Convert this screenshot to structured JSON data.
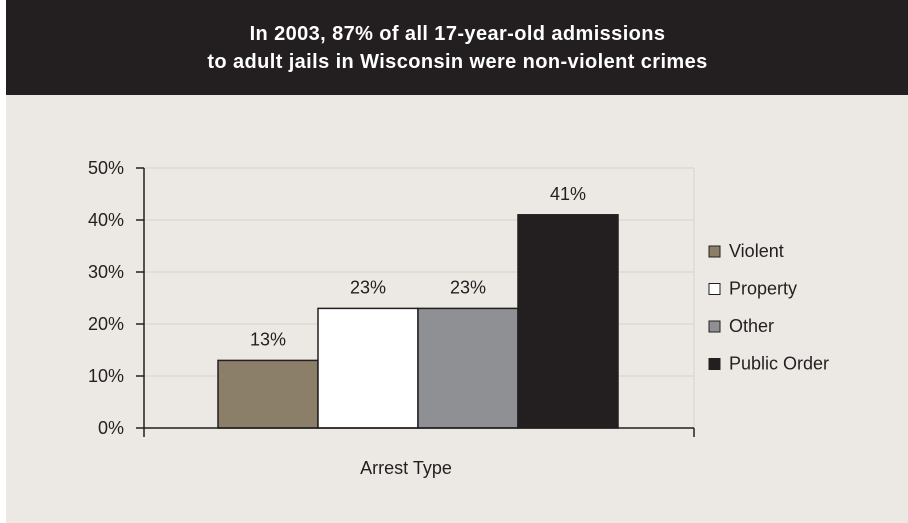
{
  "chart_data": {
    "type": "bar",
    "title_lines": [
      "In 2003, 87% of all 17-year-old admissions",
      "to adult jails in Wisconsin were non-violent crimes"
    ],
    "xlabel": "Arrest Type",
    "ylabel": "",
    "ylim": [
      0,
      50
    ],
    "yticks": [
      0,
      10,
      20,
      30,
      40,
      50
    ],
    "ytick_labels": [
      "0%",
      "10%",
      "20%",
      "30%",
      "40%",
      "50%"
    ],
    "grid": true,
    "legend_position": "right",
    "series": [
      {
        "name": "Violent",
        "value": 13,
        "label": "13%",
        "color": "#8c7f6a"
      },
      {
        "name": "Property",
        "value": 23,
        "label": "23%",
        "color": "#ffffff"
      },
      {
        "name": "Other",
        "value": 23,
        "label": "23%",
        "color": "#8f9094"
      },
      {
        "name": "Public Order",
        "value": 41,
        "label": "41%",
        "color": "#231f20"
      }
    ],
    "axis_color": "#231f20",
    "grid_color": "#d6d2cc",
    "bar_outline_color": "#231f20"
  }
}
